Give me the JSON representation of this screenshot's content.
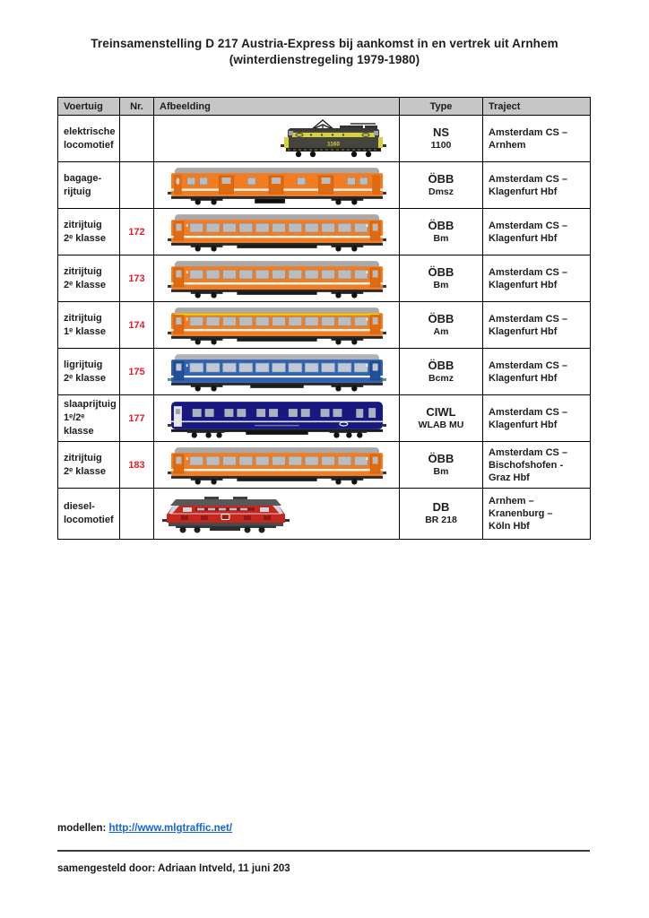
{
  "page": {
    "title_line1": "Treinsamenstelling D 217 Austria-Express bij aankomst in en vertrek uit Arnhem",
    "title_line2": "(winterdienstregeling 1979-1980)"
  },
  "table": {
    "headers": [
      "Voertuig",
      "Nr.",
      "Afbeelding",
      "Type",
      "Traject"
    ],
    "rows": [
      {
        "voertuig": [
          "elektrische",
          "locomotief"
        ],
        "nr": "",
        "image": "ns-1100-electric-locomotive",
        "image_align": "right",
        "image_text": "1160",
        "type_main": "NS",
        "type_sub": "1100",
        "traject": [
          "Amsterdam CS –",
          "Arnhem"
        ]
      },
      {
        "voertuig": [
          "bagage-",
          "rijtuig"
        ],
        "nr": "",
        "image": "oebb-baggage-car-orange",
        "image_align": "center",
        "type_main": "ÖBB",
        "type_sub": "Dmsz",
        "traject": [
          "Amsterdam CS –",
          "Klagenfurt Hbf"
        ]
      },
      {
        "voertuig": [
          "zitrijtuig",
          "2ᵉ klasse"
        ],
        "nr": "172",
        "image": "oebb-coach-orange-2nd",
        "image_align": "center",
        "type_main": "ÖBB",
        "type_sub": "Bm",
        "traject": [
          "Amsterdam CS –",
          "Klagenfurt Hbf"
        ]
      },
      {
        "voertuig": [
          "zitrijtuig",
          "2ᵉ klasse"
        ],
        "nr": "173",
        "image": "oebb-coach-orange-2nd",
        "image_align": "center",
        "type_main": "ÖBB",
        "type_sub": "Bm",
        "traject": [
          "Amsterdam CS –",
          "Klagenfurt Hbf"
        ]
      },
      {
        "voertuig": [
          "zitrijtuig",
          "1ᵉ klasse"
        ],
        "nr": "174",
        "image": "oebb-coach-orange-1st",
        "image_align": "center",
        "type_main": "ÖBB",
        "type_sub": "Am",
        "traject": [
          "Amsterdam CS –",
          "Klagenfurt Hbf"
        ]
      },
      {
        "voertuig": [
          "ligrijtuig",
          "2ᵉ klasse"
        ],
        "nr": "175",
        "image": "oebb-couchette-blue",
        "image_align": "center",
        "type_main": "ÖBB",
        "type_sub": "Bcmz",
        "traject": [
          "Amsterdam CS –",
          "Klagenfurt Hbf"
        ]
      },
      {
        "voertuig": [
          "slaaprijtuig",
          "1ᵉ/2ᵉ klasse"
        ],
        "nr": "177",
        "image": "ciwl-sleeper-navy",
        "image_align": "center",
        "type_main": "CIWL",
        "type_sub": "WLAB MU",
        "traject": [
          "Amsterdam CS –",
          "Klagenfurt Hbf"
        ]
      },
      {
        "voertuig": [
          "zitrijtuig",
          "2ᵉ klasse"
        ],
        "nr": "183",
        "image": "oebb-coach-orange-2nd",
        "image_align": "center",
        "type_main": "ÖBB",
        "type_sub": "Bm",
        "traject": [
          "Amsterdam CS –",
          "Bischofshofen -",
          "Graz Hbf"
        ]
      },
      {
        "voertuig": [
          "diesel-",
          "locomotief"
        ],
        "nr": "",
        "image": "db-br218-diesel-locomotive",
        "image_align": "left",
        "type_main": "DB",
        "type_sub": "BR 218",
        "traject": [
          "Arnhem –",
          "Kranenburg –",
          "Köln Hbf"
        ]
      }
    ]
  },
  "footer": {
    "models_label": "modellen:",
    "models_url": "http://www.mlgtraffic.net/",
    "credit": "samengesteld door: Adriaan Intveld, 11 juni 203"
  },
  "colors": {
    "header_bg": "#c6c6c6",
    "number_red": "#e32026",
    "link_blue": "#1565d8",
    "oebb_orange": "#f47c20",
    "couchette_blue": "#2d62b5",
    "sleeper_navy": "#181880",
    "db_red": "#c5271f",
    "ns_loco_gray": "#45453d",
    "ns_yellow": "#d6d23e"
  }
}
